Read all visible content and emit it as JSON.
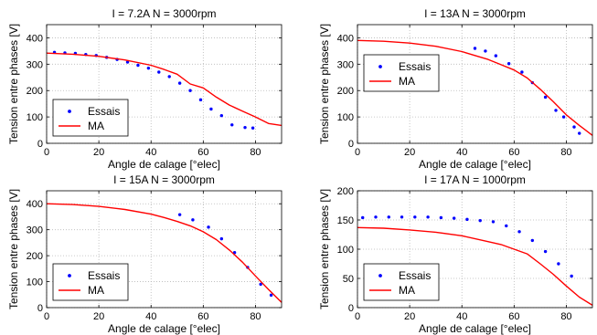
{
  "chart_data": [
    {
      "type": "line",
      "title": "I = 7.2A  N = 3000rpm",
      "xlabel": "Angle de calage [°elec]",
      "ylabel": "Tension entre phases [V]",
      "xlim": [
        0,
        90
      ],
      "ylim": [
        0,
        450
      ],
      "xticks": [
        0,
        20,
        40,
        60,
        80
      ],
      "yticks": [
        0,
        100,
        200,
        300,
        400
      ],
      "grid": true,
      "legend_position": "bottom-left",
      "series": [
        {
          "name": "Essais",
          "kind": "scatter",
          "marker": "dot",
          "color": "#0000ff",
          "x": [
            3,
            7,
            11,
            15,
            19,
            23,
            27,
            31,
            35,
            39,
            43,
            47,
            51,
            55,
            59,
            63,
            67,
            71,
            76,
            79
          ],
          "y": [
            345,
            343,
            341,
            337,
            333,
            326,
            318,
            308,
            296,
            285,
            270,
            253,
            228,
            200,
            165,
            130,
            105,
            70,
            60,
            58
          ]
        },
        {
          "name": "MA",
          "kind": "line",
          "color": "#ff0000",
          "x": [
            0,
            10,
            20,
            30,
            40,
            45,
            50,
            55,
            60,
            65,
            70,
            75,
            80,
            85,
            90
          ],
          "y": [
            342,
            338,
            330,
            316,
            296,
            280,
            262,
            225,
            210,
            175,
            145,
            122,
            100,
            75,
            68
          ]
        }
      ]
    },
    {
      "type": "line",
      "title": "I = 13A  N = 3000rpm",
      "xlabel": "Angle de calage [°elec]",
      "ylabel": "Tension entre phases [V]",
      "xlim": [
        0,
        90
      ],
      "ylim": [
        0,
        450
      ],
      "xticks": [
        0,
        20,
        40,
        60,
        80
      ],
      "yticks": [
        0,
        100,
        200,
        300,
        400
      ],
      "grid": true,
      "legend_position": "center-left",
      "series": [
        {
          "name": "Essais",
          "kind": "scatter",
          "marker": "dot",
          "color": "#0000ff",
          "x": [
            45,
            49,
            53,
            58,
            63,
            67,
            72,
            76,
            79,
            83,
            85
          ],
          "y": [
            360,
            350,
            332,
            302,
            270,
            230,
            175,
            125,
            100,
            62,
            38
          ]
        },
        {
          "name": "MA",
          "kind": "line",
          "color": "#ff0000",
          "x": [
            0,
            10,
            20,
            30,
            40,
            45,
            50,
            55,
            60,
            65,
            70,
            75,
            80,
            85,
            90
          ],
          "y": [
            390,
            387,
            380,
            368,
            348,
            333,
            318,
            298,
            278,
            248,
            205,
            158,
            108,
            68,
            30
          ]
        }
      ]
    },
    {
      "type": "line",
      "title": "I = 15A  N = 3000rpm",
      "xlabel": "Angle de calage [°elec]",
      "ylabel": "Tension entre phases [V]",
      "xlim": [
        0,
        90
      ],
      "ylim": [
        0,
        450
      ],
      "xticks": [
        0,
        20,
        40,
        60,
        80
      ],
      "yticks": [
        0,
        100,
        200,
        300,
        400
      ],
      "grid": true,
      "legend_position": "bottom-left",
      "series": [
        {
          "name": "Essais",
          "kind": "scatter",
          "marker": "dot",
          "color": "#0000ff",
          "x": [
            51,
            56,
            62,
            67,
            72,
            77,
            82,
            86
          ],
          "y": [
            358,
            338,
            310,
            265,
            212,
            155,
            90,
            48
          ]
        },
        {
          "name": "MA",
          "kind": "line",
          "color": "#ff0000",
          "x": [
            0,
            10,
            20,
            30,
            40,
            45,
            50,
            55,
            60,
            65,
            70,
            75,
            80,
            85,
            90
          ],
          "y": [
            400,
            397,
            390,
            378,
            360,
            347,
            332,
            315,
            292,
            262,
            222,
            175,
            122,
            70,
            20
          ]
        }
      ]
    },
    {
      "type": "line",
      "title": "I = 17A  N = 1000rpm",
      "xlabel": "Angle de calage [°elec]",
      "ylabel": "Tension entre phases [V]",
      "xlim": [
        0,
        90
      ],
      "ylim": [
        0,
        200
      ],
      "xticks": [
        0,
        20,
        40,
        60,
        80
      ],
      "yticks": [
        0,
        50,
        100,
        150,
        200
      ],
      "grid": true,
      "legend_position": "bottom-left",
      "series": [
        {
          "name": "Essais",
          "kind": "scatter",
          "marker": "dot",
          "color": "#0000ff",
          "x": [
            2,
            7,
            12,
            17,
            22,
            27,
            32,
            37,
            42,
            47,
            52,
            57,
            62,
            67,
            72,
            77,
            82
          ],
          "y": [
            154,
            155,
            155,
            155,
            155,
            155,
            154,
            153,
            151,
            149,
            147,
            140,
            130,
            115,
            96,
            75,
            54
          ]
        },
        {
          "name": "MA",
          "kind": "line",
          "color": "#ff0000",
          "x": [
            0,
            10,
            20,
            30,
            40,
            50,
            55,
            60,
            65,
            70,
            75,
            80,
            85,
            90
          ],
          "y": [
            137,
            136,
            133,
            129,
            123,
            113,
            108,
            100,
            92,
            75,
            57,
            37,
            18,
            4
          ]
        }
      ]
    }
  ]
}
